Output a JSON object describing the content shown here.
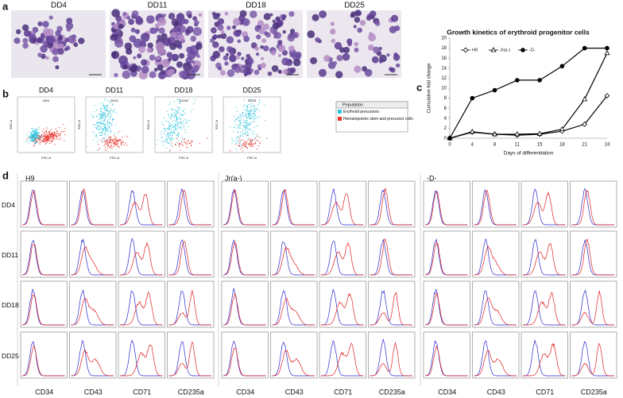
{
  "panel_a": {
    "label": "a",
    "titles": [
      "DD4",
      "DD11",
      "DD18",
      "DD25"
    ]
  },
  "panel_b": {
    "label": "b",
    "titles": [
      "DD4",
      "DD11",
      "DD18",
      "DD25"
    ],
    "x_label": "FSC-A",
    "y_label": "SSC-A",
    "legend": {
      "title": "Population",
      "items": [
        {
          "name": "Erythroid precursors",
          "color": "#2ec4dc"
        },
        {
          "name": "Hematopoietic stem and precursor cells",
          "color": "#e8342c"
        }
      ]
    }
  },
  "panel_c": {
    "label": "c"
  },
  "chart_data": {
    "type": "line",
    "title": "Growth kinetics of erythroid progenitor cells",
    "x_label": "Days of differentiation",
    "y_label": "Cumulative fold change",
    "categories": [
      "0",
      "4",
      "8",
      "11",
      "15",
      "18",
      "21",
      "24"
    ],
    "series": [
      {
        "name": "H9",
        "color": "#000000",
        "marker": "diamond",
        "filled": false,
        "values": [
          0,
          1.2,
          0.8,
          0.6,
          0.8,
          1.4,
          2.8,
          8.5
        ]
      },
      {
        "name": "Jr(a-)",
        "color": "#000000",
        "marker": "triangle",
        "filled": false,
        "values": [
          0,
          1.3,
          0.8,
          0.8,
          0.9,
          1.8,
          7.8,
          17
        ]
      },
      {
        "name": "-D-",
        "color": "#000000",
        "marker": "circle",
        "filled": true,
        "values": [
          0,
          8,
          9.6,
          11.6,
          11.6,
          14.4,
          18,
          18
        ]
      }
    ],
    "ylim": [
      0,
      20
    ],
    "yticks": [
      0,
      2,
      4,
      6,
      8,
      10,
      12,
      14,
      16,
      18,
      20
    ],
    "grid": false,
    "legend": "top"
  },
  "panel_d": {
    "label": "d",
    "groups": [
      "H9",
      "Jr(a-)",
      "-D-"
    ],
    "rows": [
      "DD4",
      "DD11",
      "DD18",
      "DD25"
    ],
    "markers": [
      "CD34",
      "CD43",
      "CD71",
      "CD235a"
    ]
  }
}
